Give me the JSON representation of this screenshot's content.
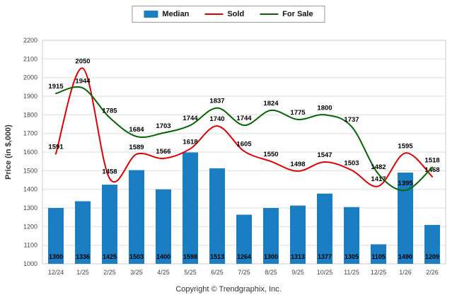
{
  "footer": {
    "copyright": "Copyright © Trendgraphix, Inc."
  },
  "chart_data": {
    "type": "bar",
    "subtype": "combo-bar-line",
    "categories": [
      "12/24",
      "1/25",
      "2/25",
      "3/25",
      "4/25",
      "5/25",
      "6/25",
      "7/25",
      "8/25",
      "9/25",
      "10/25",
      "11/25",
      "12/25",
      "1/26",
      "2/26"
    ],
    "series": [
      {
        "name": "Median",
        "type": "bar",
        "color": "#1b7ec2",
        "values": [
          1300,
          1336,
          1425,
          1503,
          1400,
          1598,
          1513,
          1264,
          1300,
          1313,
          1377,
          1305,
          1105,
          1490,
          1209
        ]
      },
      {
        "name": "Sold",
        "type": "line",
        "color": "#e00000",
        "values": [
          1591,
          2050,
          1458,
          1589,
          1566,
          1618,
          1740,
          1605,
          1550,
          1498,
          1547,
          1503,
          1417,
          1595,
          1468
        ]
      },
      {
        "name": "For Sale",
        "type": "line",
        "color": "#006600",
        "values": [
          1915,
          1944,
          1785,
          1684,
          1703,
          1744,
          1837,
          1744,
          1824,
          1775,
          1800,
          1737,
          1482,
          1395,
          1518
        ]
      }
    ],
    "title": "",
    "xlabel": "",
    "ylabel": "Price (in $,000)",
    "ylim": [
      1000,
      2200
    ],
    "ytick_step": 100,
    "grid": true,
    "legend_position": "top"
  }
}
